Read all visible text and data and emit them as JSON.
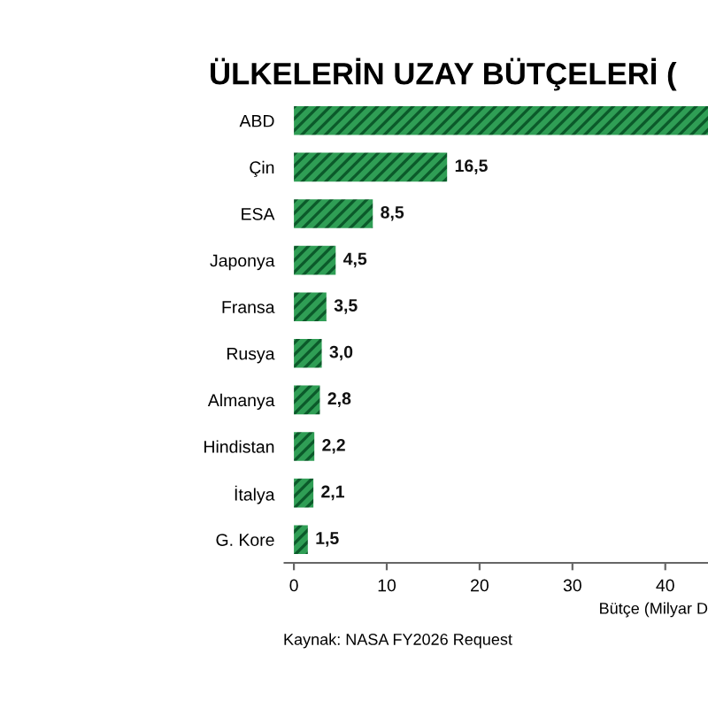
{
  "chart_data": {
    "type": "bar",
    "orientation": "horizontal",
    "title": "ÜLKELERİN UZAY BÜTÇELERİ (",
    "categories": [
      "ABD",
      "Çin",
      "ESA",
      "Japonya",
      "Fransa",
      "Rusya",
      "Almanya",
      "Hindistan",
      "İtalya",
      "G. Kore"
    ],
    "values": [
      44.6,
      16.5,
      8.5,
      4.5,
      3.5,
      3.0,
      2.8,
      2.2,
      2.1,
      1.5
    ],
    "value_labels": [
      null,
      "16,5",
      "8,5",
      "4,5",
      "3,5",
      "3,0",
      "2,8",
      "2,2",
      "2,1",
      "1,5"
    ],
    "color": "#2f9e55",
    "xlim": [
      -1,
      44.6
    ],
    "xticks": [
      0,
      10,
      20,
      30,
      40
    ],
    "xlabel": "Bütçe (Milyar D",
    "annotations": [
      "Kaynak: NASA FY2026 Request"
    ],
    "grid": false,
    "legend": false
  }
}
